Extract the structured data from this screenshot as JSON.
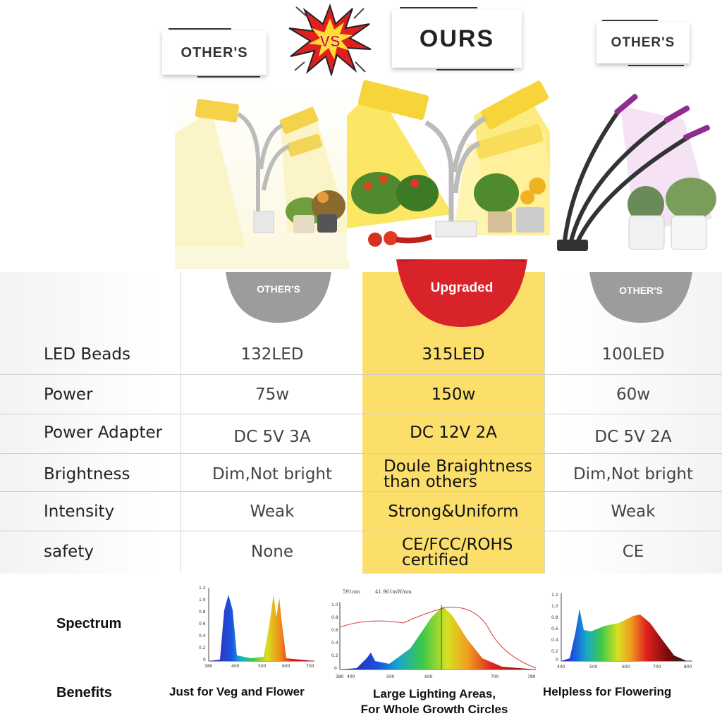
{
  "header": {
    "left_tag": "OTHER'S",
    "vs": "VS",
    "mid_tag": "OURS",
    "right_tag": "OTHER'S"
  },
  "table": {
    "badges": {
      "left": "OTHER'S",
      "mid": "Upgraded",
      "right": "OTHER'S"
    },
    "rows": [
      {
        "label": "LED Beads",
        "others_a": "132LED",
        "ours": "315LED",
        "others_b": "100LED"
      },
      {
        "label": "Power",
        "others_a": "75w",
        "ours": "150w",
        "others_b": "60w"
      },
      {
        "label": "Power Adapter",
        "others_a": "DC 5V 3A",
        "ours": "DC 12V 2A",
        "others_b": "DC 5V 2A"
      },
      {
        "label": "Brightness",
        "others_a": "Dim,Not bright",
        "ours_line1": "Doule Braightness",
        "ours_line2": "than others",
        "others_b": "Dim,Not bright"
      },
      {
        "label": "Intensity",
        "others_a": "Weak",
        "ours": "Strong&Uniform",
        "others_b": "Weak"
      },
      {
        "label": "safety",
        "others_a": "None",
        "ours_line1": "CE/FCC/ROHS",
        "ours_line2": "certified",
        "others_b": "CE"
      }
    ]
  },
  "bottom": {
    "spectrum_label": "Spectrum",
    "benefits_label": "Benefits",
    "benefit_left": "Just for Veg and Flower",
    "benefit_mid_line1": "Large Lighting Areas,",
    "benefit_mid_line2": "For Whole Growth Circles",
    "benefit_right": "Helpless for Flowering",
    "chart_left": {
      "yticks": [
        "1.2",
        "1.0",
        "0.8",
        "0.6",
        "0.4",
        "0.2",
        "0"
      ],
      "xticks": [
        "380",
        "400",
        "500",
        "600",
        "700"
      ]
    },
    "chart_mid": {
      "top_left": "591nm",
      "top_mid": "41.961mW/nm",
      "yticks": [
        "1.0",
        "0.8",
        "0.6",
        "0.4",
        "0.2",
        "0"
      ],
      "xticks": [
        "380",
        "400",
        "500",
        "600",
        "700",
        "780"
      ]
    },
    "chart_right": {
      "yticks": [
        "1.2",
        "1.0",
        "0.8",
        "0.6",
        "0.4",
        "0.2",
        "0"
      ],
      "xticks": [
        "400",
        "500",
        "600",
        "700",
        "800"
      ]
    }
  },
  "colors": {
    "highlight": "#fbdf6a",
    "upgraded_red": "#d8232a",
    "others_gray": "#9c9c9c"
  }
}
